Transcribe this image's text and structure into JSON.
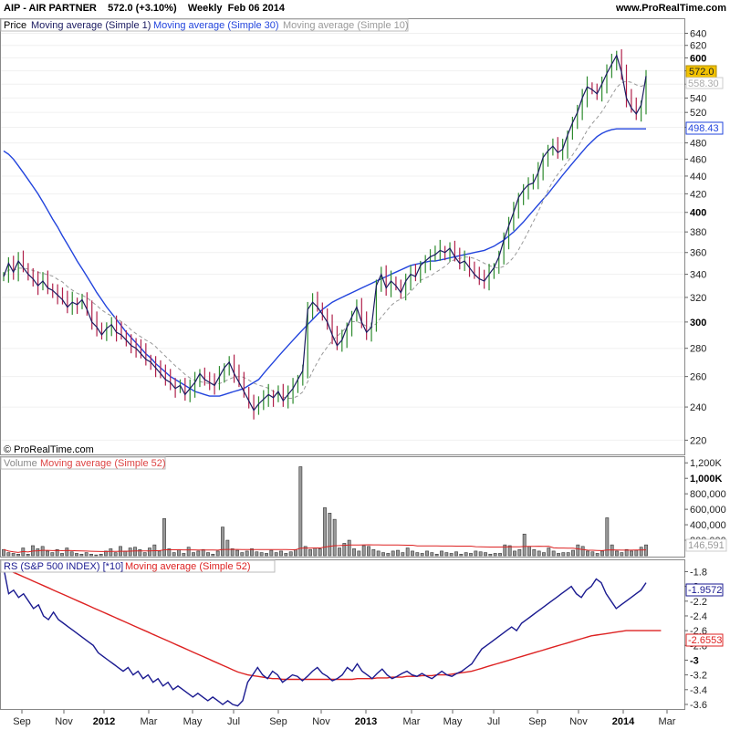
{
  "header": {
    "title": "AIP - AIR PARTNER    572.0 (+3.10%)    Weekly  Feb 06 2014",
    "site": "www.ProRealTime.com"
  },
  "copyright": "© ProRealTime.com",
  "colors": {
    "up": "#2e8b2e",
    "down": "#b0204a",
    "ma_simple1": "#1a1a60",
    "ma30": "#2244dd",
    "ma10": "#999999",
    "rs": "#1a1a90",
    "ma52": "#dd2222",
    "volume_bar": "#999999",
    "price_badge": "#f2c200"
  },
  "chart_data": [
    {
      "type": "candlestick",
      "panel": "price",
      "legend": [
        "Price",
        "Moving average (Simple 1)",
        "Moving average (Simple 30)",
        "Moving average (Simple 10)"
      ],
      "y_ticks": [
        640,
        620,
        600,
        580,
        560,
        540,
        520,
        500,
        480,
        460,
        440,
        420,
        400,
        380,
        360,
        340,
        320,
        300,
        280,
        260,
        240,
        220
      ],
      "y_ticks_bold": [
        600,
        400,
        300
      ],
      "y_scale": "log",
      "ylim": [
        215,
        650
      ],
      "x_ticks": [
        "Sep",
        "Nov",
        "2012",
        "Mar",
        "May",
        "Jul",
        "Sep",
        "Nov",
        "2013",
        "Mar",
        "May",
        "Jul",
        "Sep",
        "Nov",
        "2014",
        "Mar"
      ],
      "x_ticks_bold": [
        "2012",
        "2013",
        "2014"
      ],
      "last_price": "572.0",
      "ma10_value": "558.30",
      "ma30_value": "498.43",
      "close": [
        338,
        350,
        342,
        352,
        346,
        340,
        336,
        330,
        334,
        328,
        326,
        322,
        318,
        312,
        316,
        314,
        318,
        310,
        300,
        296,
        290,
        295,
        298,
        292,
        290,
        286,
        282,
        280,
        276,
        272,
        270,
        266,
        262,
        258,
        256,
        252,
        254,
        248,
        252,
        256,
        262,
        258,
        256,
        254,
        260,
        266,
        270,
        262,
        256,
        250,
        244,
        238,
        242,
        245,
        248,
        246,
        250,
        244,
        248,
        252,
        258,
        264,
        310,
        316,
        312,
        306,
        300,
        290,
        282,
        286,
        296,
        304,
        312,
        300,
        292,
        296,
        330,
        340,
        328,
        334,
        330,
        324,
        334,
        340,
        338,
        348,
        352,
        356,
        358,
        362,
        360,
        364,
        356,
        350,
        352,
        346,
        340,
        336,
        334,
        340,
        346,
        356,
        372,
        386,
        400,
        416,
        424,
        430,
        432,
        444,
        462,
        470,
        476,
        468,
        472,
        490,
        506,
        520,
        540,
        556,
        552,
        546,
        560,
        576,
        590,
        604,
        578,
        540,
        526,
        518,
        530,
        572
      ],
      "ma30": [
        470,
        466,
        460,
        452,
        444,
        436,
        428,
        420,
        411,
        402,
        393,
        385,
        376,
        368,
        360,
        352,
        345,
        338,
        331,
        324,
        318,
        312,
        307,
        302,
        297,
        292,
        288,
        284,
        280,
        276,
        273,
        269,
        266,
        263,
        260,
        258,
        256,
        254,
        252,
        250,
        249,
        248,
        247,
        247,
        247,
        248,
        249,
        250,
        251,
        252,
        254,
        256,
        258,
        262,
        266,
        270,
        274,
        278,
        282,
        286,
        290,
        294,
        298,
        302,
        306,
        310,
        313,
        316,
        318,
        320,
        322,
        324,
        326,
        328,
        330,
        332,
        334,
        336,
        338,
        340,
        342,
        344,
        346,
        348,
        349,
        350,
        351,
        352,
        352,
        353,
        354,
        355,
        356,
        357,
        358,
        359,
        360,
        361,
        362,
        364,
        366,
        369,
        372,
        376,
        380,
        385,
        390,
        396,
        402,
        408,
        414,
        420,
        427,
        434,
        441,
        448,
        455,
        462,
        469,
        476,
        482,
        488,
        492,
        495,
        497,
        498,
        498,
        498,
        498,
        498,
        498,
        498
      ]
    },
    {
      "type": "bar",
      "panel": "volume",
      "legend": [
        "Volume",
        "Moving average (Simple 52)"
      ],
      "y_ticks": [
        "1,200K",
        "1,000K",
        "800,000",
        "600,000",
        "400,000",
        "200,000",
        "146,591"
      ],
      "ylim": [
        0,
        1250000
      ],
      "ma52_value": "146,591",
      "values": [
        80000,
        40000,
        30000,
        20000,
        100000,
        20000,
        130000,
        90000,
        120000,
        60000,
        40000,
        80000,
        30000,
        100000,
        50000,
        30000,
        20000,
        40000,
        20000,
        10000,
        20000,
        60000,
        90000,
        40000,
        120000,
        60000,
        100000,
        110000,
        80000,
        40000,
        100000,
        140000,
        60000,
        480000,
        90000,
        40000,
        80000,
        30000,
        110000,
        40000,
        60000,
        80000,
        40000,
        20000,
        60000,
        370000,
        200000,
        90000,
        70000,
        40000,
        60000,
        90000,
        50000,
        40000,
        30000,
        70000,
        40000,
        60000,
        30000,
        50000,
        80000,
        1150000,
        120000,
        80000,
        100000,
        90000,
        620000,
        550000,
        470000,
        100000,
        160000,
        200000,
        90000,
        60000,
        130000,
        120000,
        80000,
        60000,
        40000,
        30000,
        60000,
        70000,
        40000,
        100000,
        60000,
        40000,
        30000,
        60000,
        40000,
        20000,
        60000,
        40000,
        30000,
        50000,
        20000,
        40000,
        30000,
        60000,
        50000,
        40000,
        20000,
        30000,
        30000,
        140000,
        130000,
        60000,
        80000,
        280000,
        120000,
        80000,
        60000,
        40000,
        100000,
        60000,
        30000,
        40000,
        40000,
        70000,
        140000,
        120000,
        60000,
        50000,
        30000,
        60000,
        490000,
        140000,
        60000,
        40000,
        80000,
        60000,
        70000,
        110000,
        140000
      ]
    },
    {
      "type": "line",
      "panel": "rs",
      "legend": [
        "RS (S&P 500 INDEX) [*10]",
        "Moving average (Simple 52)"
      ],
      "y_ticks": [
        -1.8,
        -2.0,
        -2.2,
        -2.4,
        -2.6,
        -2.8,
        -3.0,
        -3.2,
        -3.4,
        -3.6
      ],
      "y_ticks_bold": [
        -2.0,
        -3.0
      ],
      "ylim": [
        -3.65,
        -1.72
      ],
      "rs_value": "-1.9572",
      "ma52_value": "-2.6553",
      "rs": [
        -1.75,
        -2.1,
        -2.05,
        -2.15,
        -2.1,
        -2.2,
        -2.3,
        -2.25,
        -2.4,
        -2.45,
        -2.35,
        -2.45,
        -2.5,
        -2.55,
        -2.6,
        -2.65,
        -2.7,
        -2.75,
        -2.8,
        -2.9,
        -2.95,
        -3.0,
        -3.05,
        -3.1,
        -3.15,
        -3.1,
        -3.2,
        -3.15,
        -3.25,
        -3.2,
        -3.3,
        -3.25,
        -3.35,
        -3.3,
        -3.4,
        -3.35,
        -3.4,
        -3.45,
        -3.5,
        -3.45,
        -3.5,
        -3.55,
        -3.5,
        -3.55,
        -3.6,
        -3.55,
        -3.6,
        -3.62,
        -3.55,
        -3.3,
        -3.2,
        -3.1,
        -3.2,
        -3.25,
        -3.15,
        -3.2,
        -3.3,
        -3.25,
        -3.2,
        -3.22,
        -3.28,
        -3.22,
        -3.15,
        -3.1,
        -3.18,
        -3.22,
        -3.28,
        -3.25,
        -3.2,
        -3.1,
        -3.15,
        -3.05,
        -3.15,
        -3.2,
        -3.25,
        -3.18,
        -3.12,
        -3.2,
        -3.25,
        -3.22,
        -3.18,
        -3.15,
        -3.2,
        -3.22,
        -3.18,
        -3.22,
        -3.25,
        -3.2,
        -3.15,
        -3.2,
        -3.22,
        -3.18,
        -3.15,
        -3.1,
        -3.05,
        -2.95,
        -2.85,
        -2.8,
        -2.75,
        -2.7,
        -2.65,
        -2.6,
        -2.55,
        -2.6,
        -2.5,
        -2.45,
        -2.4,
        -2.35,
        -2.3,
        -2.25,
        -2.2,
        -2.15,
        -2.1,
        -2.05,
        -2.0,
        -2.1,
        -2.15,
        -2.05,
        -2.0,
        -1.9,
        -1.95,
        -2.1,
        -2.2,
        -2.3,
        -2.25,
        -2.2,
        -2.15,
        -2.1,
        -2.05,
        -1.95
      ],
      "ma52": [
        -1.75,
        -1.78,
        -1.81,
        -1.84,
        -1.87,
        -1.9,
        -1.93,
        -1.96,
        -1.99,
        -2.02,
        -2.05,
        -2.08,
        -2.11,
        -2.14,
        -2.17,
        -2.2,
        -2.23,
        -2.26,
        -2.29,
        -2.32,
        -2.35,
        -2.38,
        -2.41,
        -2.44,
        -2.47,
        -2.5,
        -2.53,
        -2.56,
        -2.59,
        -2.62,
        -2.65,
        -2.68,
        -2.71,
        -2.74,
        -2.77,
        -2.8,
        -2.83,
        -2.86,
        -2.89,
        -2.92,
        -2.95,
        -2.98,
        -3.01,
        -3.04,
        -3.07,
        -3.1,
        -3.13,
        -3.16,
        -3.18,
        -3.2,
        -3.21,
        -3.22,
        -3.23,
        -3.24,
        -3.25,
        -3.25,
        -3.26,
        -3.26,
        -3.26,
        -3.26,
        -3.26,
        -3.26,
        -3.26,
        -3.26,
        -3.26,
        -3.26,
        -3.26,
        -3.26,
        -3.26,
        -3.26,
        -3.26,
        -3.25,
        -3.25,
        -3.25,
        -3.25,
        -3.24,
        -3.24,
        -3.24,
        -3.23,
        -3.23,
        -3.23,
        -3.22,
        -3.22,
        -3.22,
        -3.21,
        -3.21,
        -3.21,
        -3.2,
        -3.2,
        -3.2,
        -3.19,
        -3.18,
        -3.17,
        -3.16,
        -3.15,
        -3.13,
        -3.11,
        -3.09,
        -3.07,
        -3.05,
        -3.03,
        -3.01,
        -2.99,
        -2.97,
        -2.95,
        -2.93,
        -2.91,
        -2.89,
        -2.87,
        -2.85,
        -2.83,
        -2.81,
        -2.79,
        -2.77,
        -2.75,
        -2.73,
        -2.71,
        -2.69,
        -2.67,
        -2.66,
        -2.65,
        -2.64,
        -2.63,
        -2.62,
        -2.61,
        -2.6,
        -2.6,
        -2.6,
        -2.6,
        -2.6,
        -2.6,
        -2.6,
        -2.6
      ]
    }
  ]
}
